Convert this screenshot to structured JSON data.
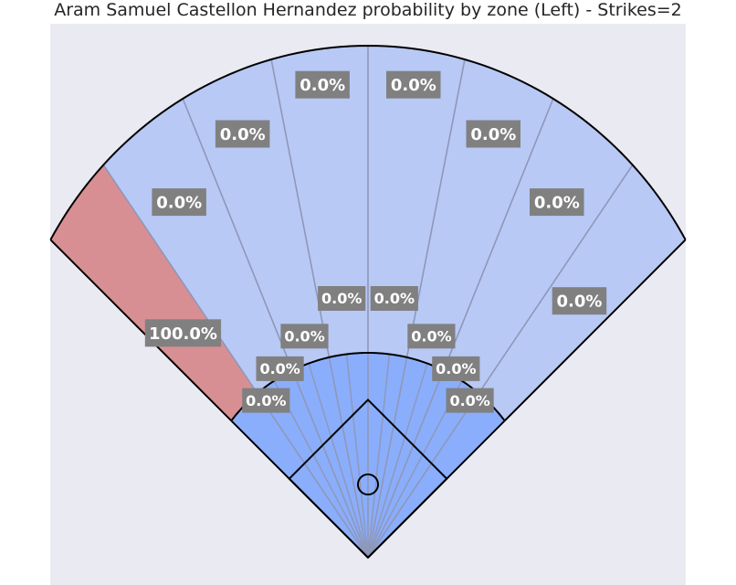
{
  "chart_data": {
    "type": "spray-field",
    "title": "Aram Samuel Castellon Hernandez probability by zone (Left) - Strikes=2",
    "outfield_zones": [
      {
        "label": "100.0%",
        "value": 100.0
      },
      {
        "label": "0.0%",
        "value": 0.0
      },
      {
        "label": "0.0%",
        "value": 0.0
      },
      {
        "label": "0.0%",
        "value": 0.0
      },
      {
        "label": "0.0%",
        "value": 0.0
      },
      {
        "label": "0.0%",
        "value": 0.0
      },
      {
        "label": "0.0%",
        "value": 0.0
      },
      {
        "label": "0.0%",
        "value": 0.0
      }
    ],
    "infield_zones": [
      {
        "label": "0.0%",
        "value": 0.0
      },
      {
        "label": "0.0%",
        "value": 0.0
      },
      {
        "label": "0.0%",
        "value": 0.0
      },
      {
        "label": "0.0%",
        "value": 0.0
      },
      {
        "label": "0.0%",
        "value": 0.0
      },
      {
        "label": "0.0%",
        "value": 0.0
      },
      {
        "label": "0.0%",
        "value": 0.0
      },
      {
        "label": "0.0%",
        "value": 0.0
      }
    ],
    "colors": {
      "plot_background": "#eaeaf2",
      "outfield_low": "#b9c9f5",
      "outfield_high": "#d88f93",
      "infield": "#8aaefb",
      "label_box": "#808080",
      "divider": "#8f97b8"
    }
  }
}
